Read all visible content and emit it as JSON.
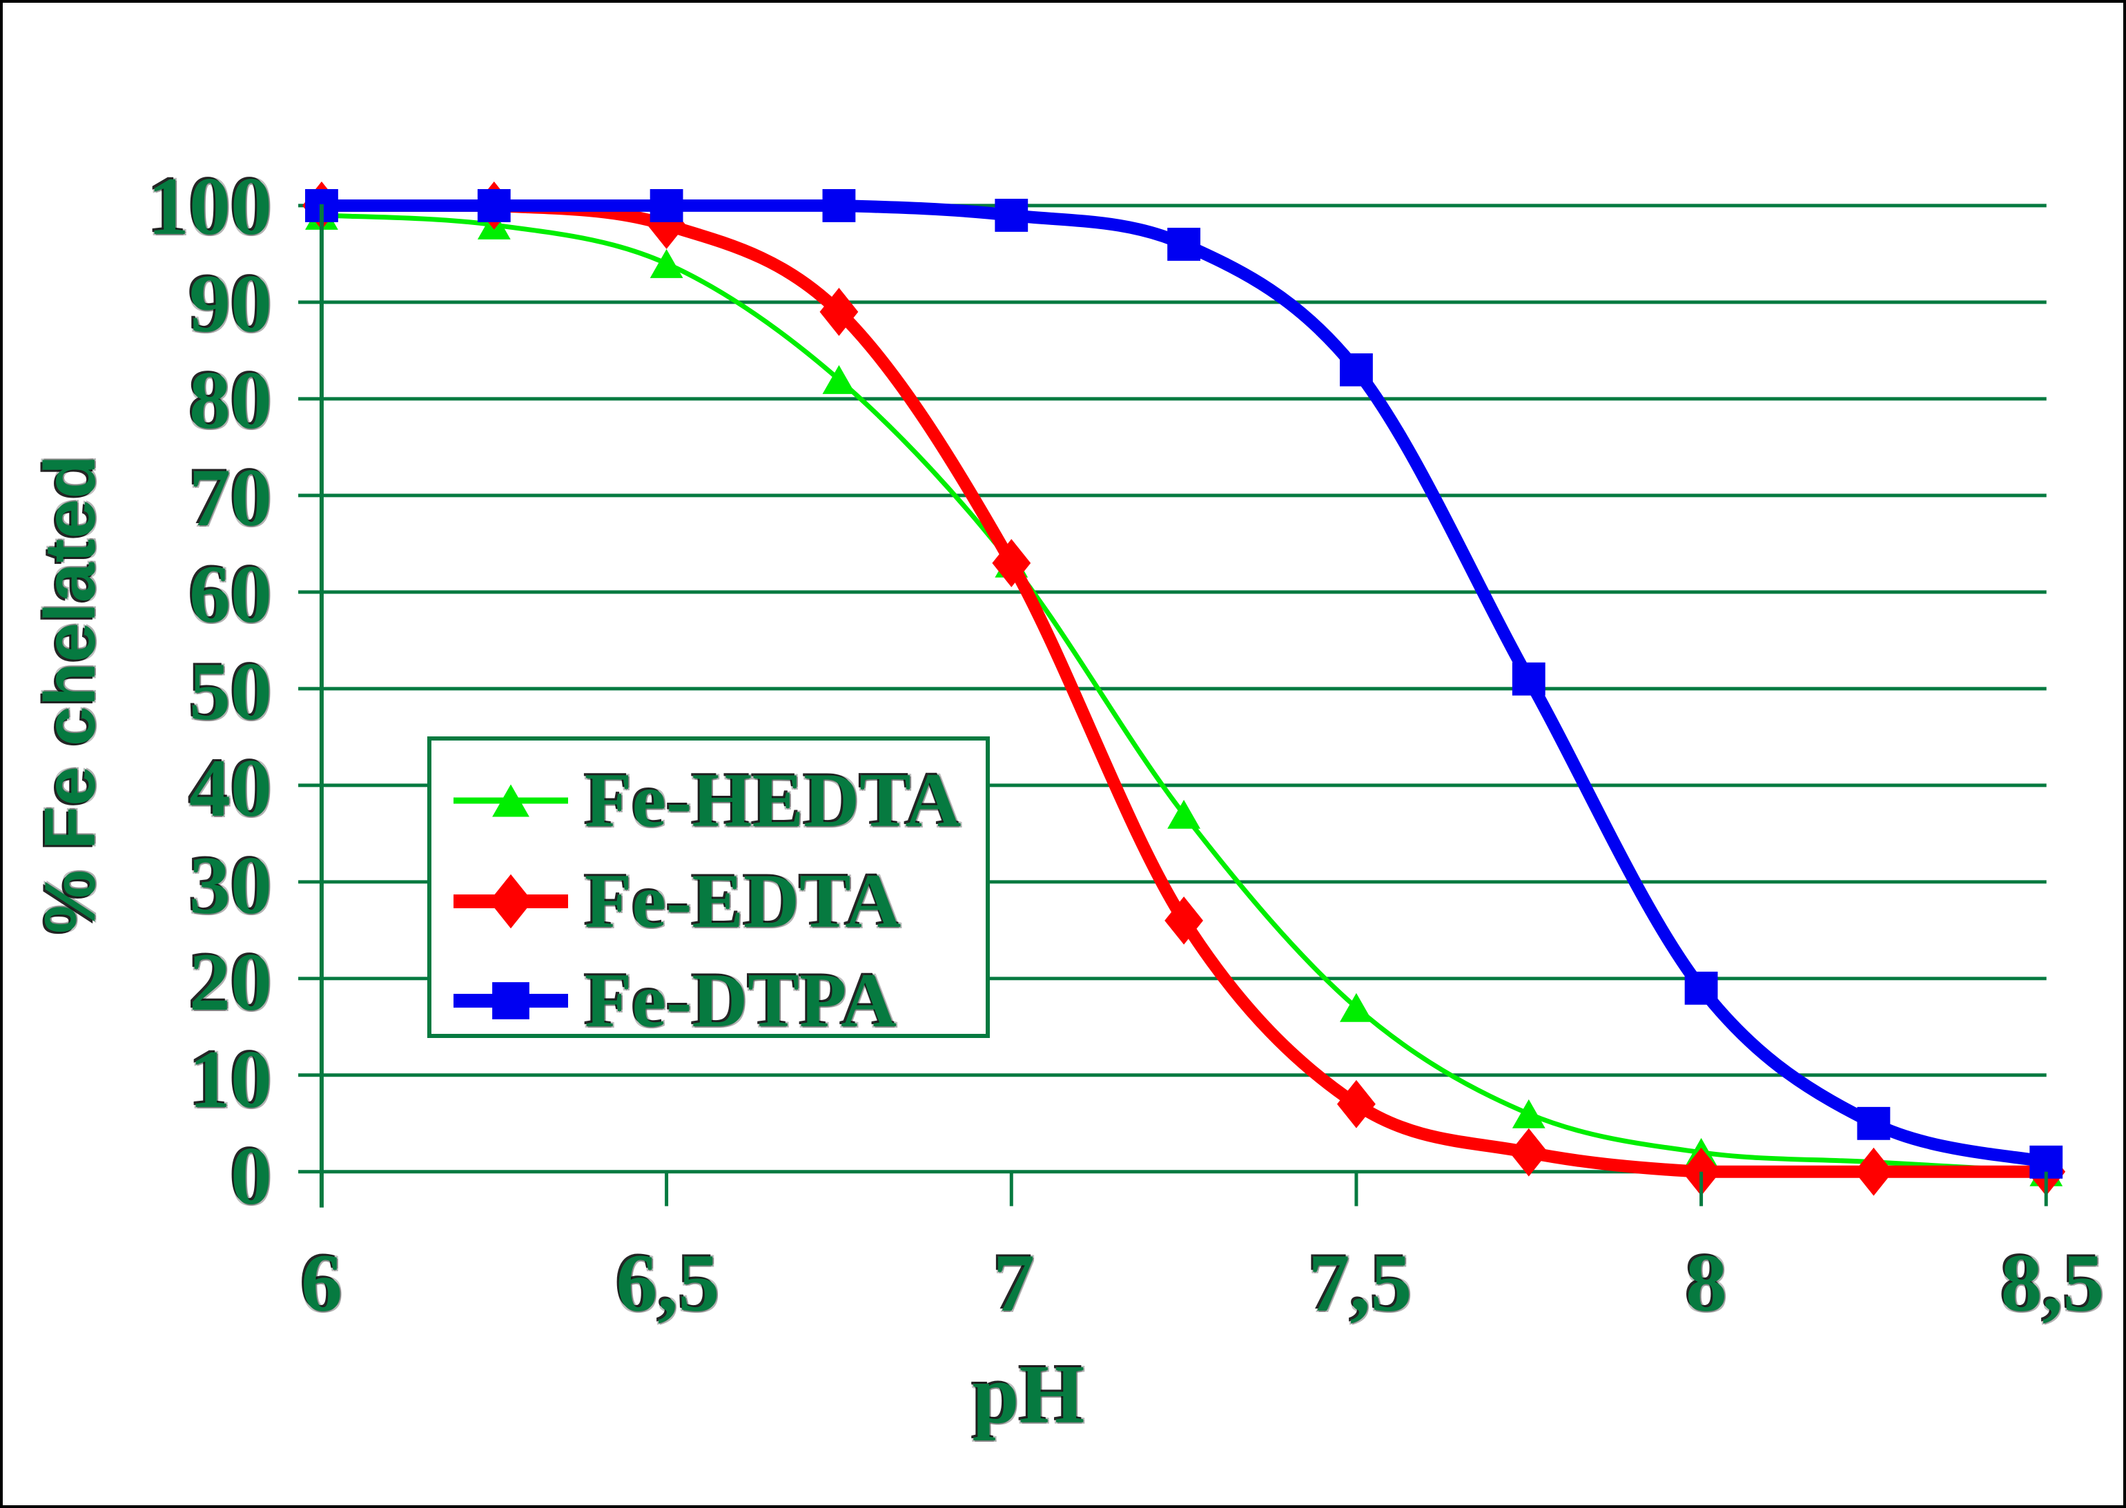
{
  "chart_data": {
    "type": "line",
    "title": "",
    "xlabel": "pH",
    "ylabel": "% Fe chelated",
    "xlim": [
      6,
      8.5
    ],
    "ylim": [
      0,
      100
    ],
    "grid": "horizontal-every-10",
    "legend_position": "inside-upper-left-of-lower-half",
    "x": [
      6,
      6.25,
      6.5,
      6.75,
      7,
      7.25,
      7.5,
      7.75,
      8,
      8.25,
      8.5
    ],
    "x_tick_values": [
      6,
      6.5,
      7,
      7.5,
      8,
      8.5
    ],
    "x_tick_labels": [
      "6",
      "6,5",
      "7",
      "7,5",
      "8",
      "8,5"
    ],
    "y_ticks": [
      0,
      10,
      20,
      30,
      40,
      50,
      60,
      70,
      80,
      90,
      100
    ],
    "series": [
      {
        "name": "Fe-HEDTA",
        "color": "#00EE00",
        "marker": "triangle",
        "line_width": 7,
        "values": [
          99,
          98,
          94,
          82,
          63,
          37,
          17,
          6,
          2,
          1,
          0
        ]
      },
      {
        "name": "Fe-EDTA",
        "color": "#FF0000",
        "marker": "diamond",
        "line_width": 18,
        "values": [
          100,
          100,
          98,
          89,
          63,
          26,
          7,
          2,
          0,
          0,
          0
        ]
      },
      {
        "name": "Fe-DTPA",
        "color": "#0000F2",
        "marker": "square",
        "line_width": 18,
        "values": [
          100,
          100,
          100,
          100,
          99,
          96,
          83,
          51,
          19,
          5,
          1
        ]
      }
    ]
  },
  "colors": {
    "axis_and_text_green": "#067A40",
    "background": "#FFFFFF",
    "image_border": "#000000"
  }
}
